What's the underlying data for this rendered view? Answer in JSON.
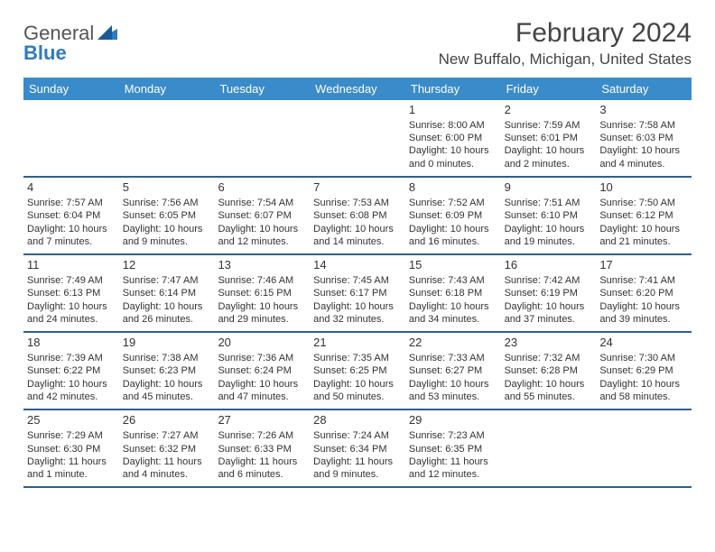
{
  "logo": {
    "word1": "General",
    "word2": "Blue"
  },
  "title": "February 2024",
  "location": "New Buffalo, Michigan, United States",
  "colors": {
    "headerBar": "#3a8bc9",
    "rowBorder": "#2f5f8f",
    "logoBlue": "#2f7bbf",
    "textGray": "#444"
  },
  "weekdays": [
    "Sunday",
    "Monday",
    "Tuesday",
    "Wednesday",
    "Thursday",
    "Friday",
    "Saturday"
  ],
  "weeks": [
    [
      null,
      null,
      null,
      null,
      {
        "n": "1",
        "sr": "Sunrise: 8:00 AM",
        "ss": "Sunset: 6:00 PM",
        "d1": "Daylight: 10 hours",
        "d2": "and 0 minutes."
      },
      {
        "n": "2",
        "sr": "Sunrise: 7:59 AM",
        "ss": "Sunset: 6:01 PM",
        "d1": "Daylight: 10 hours",
        "d2": "and 2 minutes."
      },
      {
        "n": "3",
        "sr": "Sunrise: 7:58 AM",
        "ss": "Sunset: 6:03 PM",
        "d1": "Daylight: 10 hours",
        "d2": "and 4 minutes."
      }
    ],
    [
      {
        "n": "4",
        "sr": "Sunrise: 7:57 AM",
        "ss": "Sunset: 6:04 PM",
        "d1": "Daylight: 10 hours",
        "d2": "and 7 minutes."
      },
      {
        "n": "5",
        "sr": "Sunrise: 7:56 AM",
        "ss": "Sunset: 6:05 PM",
        "d1": "Daylight: 10 hours",
        "d2": "and 9 minutes."
      },
      {
        "n": "6",
        "sr": "Sunrise: 7:54 AM",
        "ss": "Sunset: 6:07 PM",
        "d1": "Daylight: 10 hours",
        "d2": "and 12 minutes."
      },
      {
        "n": "7",
        "sr": "Sunrise: 7:53 AM",
        "ss": "Sunset: 6:08 PM",
        "d1": "Daylight: 10 hours",
        "d2": "and 14 minutes."
      },
      {
        "n": "8",
        "sr": "Sunrise: 7:52 AM",
        "ss": "Sunset: 6:09 PM",
        "d1": "Daylight: 10 hours",
        "d2": "and 16 minutes."
      },
      {
        "n": "9",
        "sr": "Sunrise: 7:51 AM",
        "ss": "Sunset: 6:10 PM",
        "d1": "Daylight: 10 hours",
        "d2": "and 19 minutes."
      },
      {
        "n": "10",
        "sr": "Sunrise: 7:50 AM",
        "ss": "Sunset: 6:12 PM",
        "d1": "Daylight: 10 hours",
        "d2": "and 21 minutes."
      }
    ],
    [
      {
        "n": "11",
        "sr": "Sunrise: 7:49 AM",
        "ss": "Sunset: 6:13 PM",
        "d1": "Daylight: 10 hours",
        "d2": "and 24 minutes."
      },
      {
        "n": "12",
        "sr": "Sunrise: 7:47 AM",
        "ss": "Sunset: 6:14 PM",
        "d1": "Daylight: 10 hours",
        "d2": "and 26 minutes."
      },
      {
        "n": "13",
        "sr": "Sunrise: 7:46 AM",
        "ss": "Sunset: 6:15 PM",
        "d1": "Daylight: 10 hours",
        "d2": "and 29 minutes."
      },
      {
        "n": "14",
        "sr": "Sunrise: 7:45 AM",
        "ss": "Sunset: 6:17 PM",
        "d1": "Daylight: 10 hours",
        "d2": "and 32 minutes."
      },
      {
        "n": "15",
        "sr": "Sunrise: 7:43 AM",
        "ss": "Sunset: 6:18 PM",
        "d1": "Daylight: 10 hours",
        "d2": "and 34 minutes."
      },
      {
        "n": "16",
        "sr": "Sunrise: 7:42 AM",
        "ss": "Sunset: 6:19 PM",
        "d1": "Daylight: 10 hours",
        "d2": "and 37 minutes."
      },
      {
        "n": "17",
        "sr": "Sunrise: 7:41 AM",
        "ss": "Sunset: 6:20 PM",
        "d1": "Daylight: 10 hours",
        "d2": "and 39 minutes."
      }
    ],
    [
      {
        "n": "18",
        "sr": "Sunrise: 7:39 AM",
        "ss": "Sunset: 6:22 PM",
        "d1": "Daylight: 10 hours",
        "d2": "and 42 minutes."
      },
      {
        "n": "19",
        "sr": "Sunrise: 7:38 AM",
        "ss": "Sunset: 6:23 PM",
        "d1": "Daylight: 10 hours",
        "d2": "and 45 minutes."
      },
      {
        "n": "20",
        "sr": "Sunrise: 7:36 AM",
        "ss": "Sunset: 6:24 PM",
        "d1": "Daylight: 10 hours",
        "d2": "and 47 minutes."
      },
      {
        "n": "21",
        "sr": "Sunrise: 7:35 AM",
        "ss": "Sunset: 6:25 PM",
        "d1": "Daylight: 10 hours",
        "d2": "and 50 minutes."
      },
      {
        "n": "22",
        "sr": "Sunrise: 7:33 AM",
        "ss": "Sunset: 6:27 PM",
        "d1": "Daylight: 10 hours",
        "d2": "and 53 minutes."
      },
      {
        "n": "23",
        "sr": "Sunrise: 7:32 AM",
        "ss": "Sunset: 6:28 PM",
        "d1": "Daylight: 10 hours",
        "d2": "and 55 minutes."
      },
      {
        "n": "24",
        "sr": "Sunrise: 7:30 AM",
        "ss": "Sunset: 6:29 PM",
        "d1": "Daylight: 10 hours",
        "d2": "and 58 minutes."
      }
    ],
    [
      {
        "n": "25",
        "sr": "Sunrise: 7:29 AM",
        "ss": "Sunset: 6:30 PM",
        "d1": "Daylight: 11 hours",
        "d2": "and 1 minute."
      },
      {
        "n": "26",
        "sr": "Sunrise: 7:27 AM",
        "ss": "Sunset: 6:32 PM",
        "d1": "Daylight: 11 hours",
        "d2": "and 4 minutes."
      },
      {
        "n": "27",
        "sr": "Sunrise: 7:26 AM",
        "ss": "Sunset: 6:33 PM",
        "d1": "Daylight: 11 hours",
        "d2": "and 6 minutes."
      },
      {
        "n": "28",
        "sr": "Sunrise: 7:24 AM",
        "ss": "Sunset: 6:34 PM",
        "d1": "Daylight: 11 hours",
        "d2": "and 9 minutes."
      },
      {
        "n": "29",
        "sr": "Sunrise: 7:23 AM",
        "ss": "Sunset: 6:35 PM",
        "d1": "Daylight: 11 hours",
        "d2": "and 12 minutes."
      },
      null,
      null
    ]
  ]
}
